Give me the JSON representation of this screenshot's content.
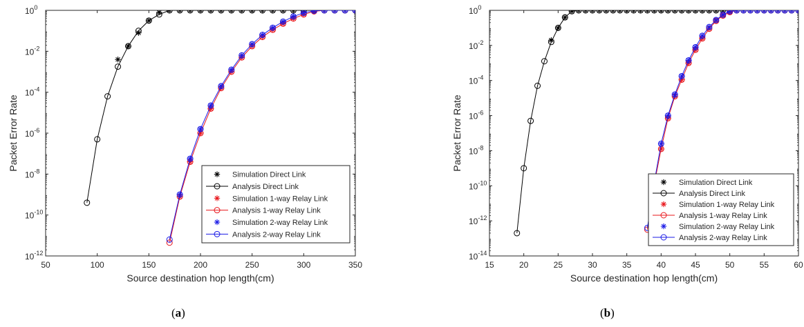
{
  "captions": {
    "a_open": "(",
    "a_letter": "a",
    "a_close": ")",
    "b_open": "(",
    "b_letter": "b",
    "b_close": ")"
  },
  "chart_data": [
    {
      "type": "line",
      "panel": "a",
      "xlabel": "Source destination hop length(cm)",
      "ylabel": "Packet Error Rate",
      "y_scale": "log",
      "xlim": [
        50,
        350
      ],
      "ylim_exp": [
        -12,
        0
      ],
      "x_ticks": [
        50,
        100,
        150,
        200,
        250,
        300,
        350
      ],
      "y_tick_exponents": [
        0,
        -2,
        -4,
        -6,
        -8,
        -10,
        -12
      ],
      "y_tick_base": "10",
      "grid": false,
      "legend_position": "bottom-right",
      "series": [
        {
          "name": "Simulation Direct Link",
          "style": "star",
          "color": "#000000",
          "x": [
            120,
            130,
            140,
            150,
            160,
            170,
            180,
            190,
            200,
            210,
            220,
            230,
            240,
            250,
            260,
            270,
            280,
            290,
            300,
            310,
            320,
            330,
            340,
            350
          ],
          "log10_y": [
            -2.4,
            -1.75,
            -1.1,
            -0.5,
            -0.1,
            0,
            0,
            0,
            0,
            0,
            0,
            0,
            0,
            0,
            0,
            0,
            0,
            0,
            0,
            0,
            0,
            0,
            0,
            0
          ]
        },
        {
          "name": "Analysis Direct Link",
          "style": "line-circle",
          "color": "#000000",
          "x": [
            90,
            100,
            110,
            120,
            130,
            140,
            150,
            160,
            170,
            180,
            190,
            200,
            210,
            220,
            230,
            240,
            250,
            260,
            270,
            280,
            290,
            300,
            310,
            320,
            330,
            340,
            350
          ],
          "log10_y": [
            -9.4,
            -6.3,
            -4.2,
            -2.75,
            -1.75,
            -1.0,
            -0.5,
            -0.2,
            0,
            0,
            0,
            0,
            0,
            0,
            0,
            0,
            0,
            0,
            0,
            0,
            0,
            0,
            0,
            0,
            0,
            0,
            0
          ]
        },
        {
          "name": "Simulation 1-way Relay Link",
          "style": "star",
          "color": "#e8141a",
          "x": [
            180,
            190,
            200,
            210,
            220,
            230,
            240,
            250,
            260,
            270,
            280,
            290,
            300,
            310,
            320,
            330,
            340,
            350
          ],
          "log10_y": [
            -9.1,
            -7.4,
            -6.0,
            -4.8,
            -3.8,
            -3.0,
            -2.3,
            -1.75,
            -1.3,
            -0.95,
            -0.65,
            -0.4,
            -0.2,
            -0.05,
            0,
            0,
            0,
            0
          ]
        },
        {
          "name": "Analysis 1-way Relay Link",
          "style": "line-circle",
          "color": "#e8141a",
          "x": [
            170,
            180,
            190,
            200,
            210,
            220,
            230,
            240,
            250,
            260,
            270,
            280,
            290,
            300,
            310,
            320,
            330,
            340,
            350
          ],
          "log10_y": [
            -11.35,
            -9.1,
            -7.4,
            -6.0,
            -4.8,
            -3.8,
            -3.0,
            -2.3,
            -1.75,
            -1.3,
            -0.95,
            -0.65,
            -0.4,
            -0.2,
            -0.05,
            0,
            0,
            0,
            0
          ]
        },
        {
          "name": "Simulation 2-way Relay Link",
          "style": "star",
          "color": "#1a1ae6",
          "x": [
            180,
            190,
            200,
            210,
            220,
            230,
            240,
            250,
            260,
            270,
            280,
            290,
            300,
            310,
            320,
            330,
            340,
            350
          ],
          "log10_y": [
            -9.0,
            -7.25,
            -5.8,
            -4.65,
            -3.7,
            -2.9,
            -2.2,
            -1.65,
            -1.2,
            -0.85,
            -0.55,
            -0.3,
            -0.12,
            -0.02,
            0,
            0,
            0,
            0
          ]
        },
        {
          "name": "Analysis 2-way Relay Link",
          "style": "line-circle",
          "color": "#1a1ae6",
          "x": [
            170,
            180,
            190,
            200,
            210,
            220,
            230,
            240,
            250,
            260,
            270,
            280,
            290,
            300,
            310,
            320,
            330,
            340,
            350
          ],
          "log10_y": [
            -11.2,
            -9.0,
            -7.25,
            -5.8,
            -4.65,
            -3.7,
            -2.9,
            -2.2,
            -1.65,
            -1.2,
            -0.85,
            -0.55,
            -0.3,
            -0.12,
            -0.02,
            0,
            0,
            0,
            0
          ]
        }
      ]
    },
    {
      "type": "line",
      "panel": "b",
      "xlabel": "Source destination hop length(cm)",
      "ylabel": "Packet Error Rate",
      "y_scale": "log",
      "xlim": [
        15,
        60
      ],
      "ylim_exp": [
        -14,
        0
      ],
      "x_ticks": [
        15,
        20,
        25,
        30,
        35,
        40,
        45,
        50,
        55,
        60
      ],
      "y_tick_exponents": [
        0,
        -2,
        -4,
        -6,
        -8,
        -10,
        -12,
        -14
      ],
      "y_tick_base": "10",
      "grid": false,
      "legend_position": "bottom-right",
      "series": [
        {
          "name": "Simulation Direct Link",
          "style": "star",
          "color": "#000000",
          "x": [
            24,
            25,
            26,
            27,
            28,
            29,
            30,
            31,
            32,
            33,
            34,
            35,
            36,
            37,
            38,
            39,
            40,
            41,
            42,
            43,
            44,
            45,
            46,
            47,
            48,
            49,
            50,
            51,
            52,
            53,
            54,
            55,
            56,
            57,
            58,
            59,
            60
          ],
          "log10_y": [
            -1.7,
            -1.0,
            -0.4,
            -0.05,
            0,
            0,
            0,
            0,
            0,
            0,
            0,
            0,
            0,
            0,
            0,
            0,
            0,
            0,
            0,
            0,
            0,
            0,
            0,
            0,
            0,
            0,
            0,
            0,
            0,
            0,
            0,
            0,
            0,
            0,
            0,
            0,
            0
          ]
        },
        {
          "name": "Analysis Direct Link",
          "style": "line-circle",
          "color": "#000000",
          "x": [
            19,
            20,
            21,
            22,
            23,
            24,
            25,
            26,
            27,
            28,
            29,
            30,
            31,
            32,
            33,
            34,
            35,
            36,
            37,
            38,
            39,
            40,
            41,
            42,
            43,
            44,
            45,
            46,
            47,
            48,
            49,
            50,
            51,
            52,
            53,
            54,
            55,
            56,
            57,
            58,
            59,
            60
          ],
          "log10_y": [
            -12.7,
            -9.0,
            -6.3,
            -4.3,
            -2.9,
            -1.8,
            -1.0,
            -0.4,
            -0.05,
            0,
            0,
            0,
            0,
            0,
            0,
            0,
            0,
            0,
            0,
            0,
            0,
            0,
            0,
            0,
            0,
            0,
            0,
            0,
            0,
            0,
            0,
            0,
            0,
            0,
            0,
            0,
            0,
            0,
            0,
            0,
            0,
            0
          ]
        },
        {
          "name": "Simulation 1-way Relay Link",
          "style": "star",
          "color": "#e8141a",
          "x": [
            40,
            41,
            42,
            43,
            44,
            45,
            46,
            47,
            48,
            49,
            50,
            51,
            52,
            53,
            54,
            55,
            56,
            57,
            58,
            59,
            60
          ],
          "log10_y": [
            -7.9,
            -6.15,
            -4.9,
            -3.95,
            -3.0,
            -2.25,
            -1.6,
            -1.05,
            -0.6,
            -0.3,
            -0.1,
            0,
            0,
            0,
            0,
            0,
            0,
            0,
            0,
            0,
            0
          ]
        },
        {
          "name": "Analysis 1-way Relay Link",
          "style": "line-circle",
          "color": "#e8141a",
          "x": [
            38,
            39,
            40,
            41,
            42,
            43,
            44,
            45,
            46,
            47,
            48,
            49,
            50,
            51,
            52,
            53,
            54,
            55,
            56,
            57,
            58,
            59,
            60
          ],
          "log10_y": [
            -12.5,
            -9.9,
            -7.9,
            -6.15,
            -4.9,
            -3.95,
            -3.0,
            -2.25,
            -1.6,
            -1.05,
            -0.6,
            -0.3,
            -0.1,
            0,
            0,
            0,
            0,
            0,
            0,
            0,
            0,
            0,
            0
          ]
        },
        {
          "name": "Simulation 2-way Relay Link",
          "style": "star",
          "color": "#1a1ae6",
          "x": [
            40,
            41,
            42,
            43,
            44,
            45,
            46,
            47,
            48,
            49,
            50,
            51,
            52,
            53,
            54,
            55,
            56,
            57,
            58,
            59,
            60
          ],
          "log10_y": [
            -7.6,
            -6.0,
            -4.8,
            -3.75,
            -2.85,
            -2.1,
            -1.45,
            -0.95,
            -0.55,
            -0.25,
            -0.05,
            0,
            0,
            0,
            0,
            0,
            0,
            0,
            0,
            0,
            0
          ]
        },
        {
          "name": "Analysis 2-way Relay Link",
          "style": "line-circle",
          "color": "#1a1ae6",
          "x": [
            38,
            39,
            40,
            41,
            42,
            43,
            44,
            45,
            46,
            47,
            48,
            49,
            50,
            51,
            52,
            53,
            54,
            55,
            56,
            57,
            58,
            59,
            60
          ],
          "log10_y": [
            -12.4,
            -9.8,
            -7.6,
            -6.0,
            -4.8,
            -3.75,
            -2.85,
            -2.1,
            -1.45,
            -0.95,
            -0.55,
            -0.25,
            -0.05,
            0,
            0,
            0,
            0,
            0,
            0,
            0,
            0,
            0,
            0
          ]
        }
      ]
    }
  ]
}
